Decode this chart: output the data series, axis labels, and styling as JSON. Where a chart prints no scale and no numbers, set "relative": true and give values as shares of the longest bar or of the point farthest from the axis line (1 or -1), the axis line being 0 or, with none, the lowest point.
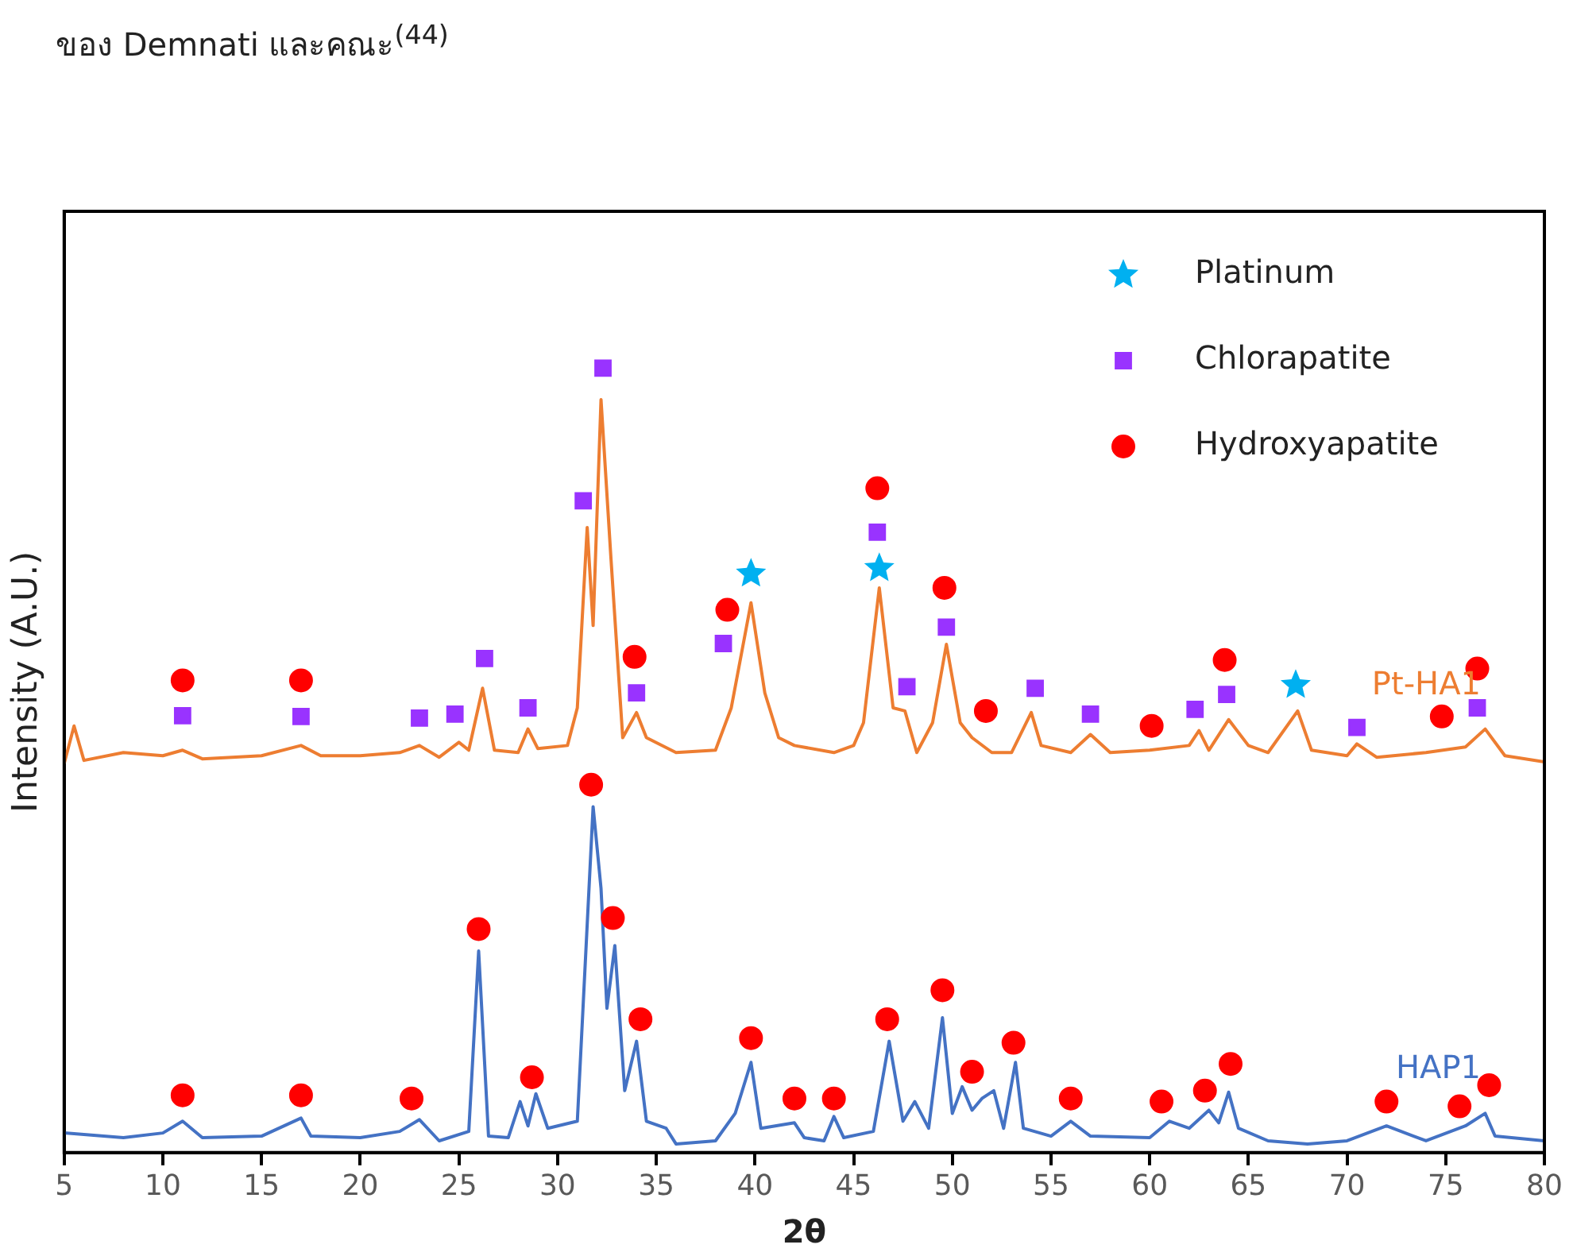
{
  "chart_data": {
    "type": "line",
    "xlabel": "2θ",
    "ylabel": "Intensity (A.U.)",
    "annotations": [
      "ของ Demnati และคณะ$^{(44)}$"
    ],
    "relative": true,
    "xlim": [
      5,
      80
    ],
    "xticks": [
      5,
      10,
      15,
      20,
      25,
      30,
      35,
      40,
      45,
      50,
      55,
      60,
      65,
      70,
      75,
      80
    ],
    "grid": false,
    "tick_labels": "x",
    "legend": "top right",
    "series": [
      {
        "name": "Pt-HA1",
        "type": "line",
        "color": "#ed7d31",
        "marker": "none",
        "x": [
          5,
          5.5,
          6,
          8,
          10,
          11,
          12,
          15,
          17,
          18,
          20,
          22,
          23,
          24,
          25,
          25.5,
          26.2,
          26.8,
          28,
          28.5,
          29,
          30.5,
          31,
          31.5,
          31.8,
          32.2,
          32.7,
          33.3,
          34,
          34.5,
          36,
          38,
          38.8,
          39.8,
          40.5,
          41.2,
          42,
          44,
          45,
          45.5,
          46.3,
          47,
          47.6,
          48.2,
          49,
          49.7,
          50.4,
          51,
          52,
          53,
          54,
          54.5,
          56,
          57,
          58,
          60,
          62,
          62.5,
          63,
          64,
          65,
          66,
          67.5,
          68.2,
          70,
          70.5,
          71.5,
          74,
          76,
          77,
          78,
          80
        ],
        "values": [
          0.496,
          0.544,
          0.5,
          0.51,
          0.506,
          0.513,
          0.502,
          0.506,
          0.519,
          0.506,
          0.506,
          0.51,
          0.519,
          0.504,
          0.523,
          0.513,
          0.592,
          0.513,
          0.51,
          0.54,
          0.515,
          0.519,
          0.567,
          0.797,
          0.672,
          0.96,
          0.759,
          0.529,
          0.561,
          0.529,
          0.51,
          0.513,
          0.567,
          0.701,
          0.586,
          0.529,
          0.519,
          0.51,
          0.519,
          0.548,
          0.72,
          0.567,
          0.563,
          0.51,
          0.548,
          0.648,
          0.548,
          0.529,
          0.51,
          0.51,
          0.561,
          0.519,
          0.51,
          0.533,
          0.51,
          0.513,
          0.519,
          0.538,
          0.513,
          0.552,
          0.519,
          0.51,
          0.563,
          0.513,
          0.506,
          0.521,
          0.504,
          0.51,
          0.517,
          0.54,
          0.506,
          0.498
        ]
      },
      {
        "name": "HAP1",
        "type": "line",
        "color": "#4472c4",
        "marker": "none",
        "x": [
          5,
          8,
          10,
          11,
          12,
          15,
          17,
          17.5,
          20,
          22,
          23,
          24,
          25.5,
          26,
          26.5,
          27.5,
          28.1,
          28.5,
          28.9,
          29.5,
          31,
          31.8,
          32.2,
          32.5,
          32.9,
          33.4,
          34,
          34.5,
          35.5,
          36,
          38,
          39,
          39.8,
          40.3,
          42,
          42.5,
          43.5,
          44,
          44.5,
          46,
          46.8,
          47.5,
          48.1,
          48.8,
          49.5,
          50,
          50.5,
          51,
          51.5,
          52.1,
          52.6,
          53.2,
          53.6,
          55,
          56,
          57,
          60,
          61,
          62,
          63,
          63.5,
          64,
          64.5,
          66,
          68,
          70,
          72,
          74,
          76,
          77,
          77.5,
          80
        ],
        "values": [
          0.025,
          0.019,
          0.025,
          0.04,
          0.019,
          0.021,
          0.044,
          0.021,
          0.019,
          0.027,
          0.042,
          0.015,
          0.027,
          0.257,
          0.021,
          0.019,
          0.065,
          0.034,
          0.075,
          0.031,
          0.04,
          0.441,
          0.337,
          0.184,
          0.264,
          0.079,
          0.142,
          0.04,
          0.031,
          0.011,
          0.015,
          0.05,
          0.115,
          0.031,
          0.038,
          0.019,
          0.015,
          0.046,
          0.019,
          0.027,
          0.142,
          0.04,
          0.065,
          0.031,
          0.172,
          0.05,
          0.084,
          0.054,
          0.069,
          0.079,
          0.031,
          0.115,
          0.031,
          0.021,
          0.04,
          0.021,
          0.019,
          0.04,
          0.031,
          0.054,
          0.038,
          0.077,
          0.031,
          0.015,
          0.011,
          0.015,
          0.034,
          0.015,
          0.034,
          0.05,
          0.021,
          0.015
        ]
      },
      {
        "name": "Platinum",
        "type": "scatter",
        "color": "#00b0f0",
        "marker": "star",
        "x": [
          39.8,
          46.3,
          67.4
        ],
        "values": [
          0.738,
          0.745,
          0.596
        ]
      },
      {
        "name": "Chlorapatite",
        "type": "scatter",
        "color": "#9933ff",
        "marker": "square",
        "x": [
          11,
          17,
          23,
          24.8,
          26.3,
          28.5,
          31.3,
          32.3,
          34,
          38.4,
          46.2,
          47.7,
          49.7,
          54.2,
          57,
          62.3,
          63.9,
          70.5,
          76.6
        ],
        "values": [
          0.557,
          0.556,
          0.554,
          0.559,
          0.63,
          0.567,
          0.831,
          1,
          0.586,
          0.649,
          0.791,
          0.594,
          0.67,
          0.592,
          0.559,
          0.565,
          0.584,
          0.542,
          0.567
        ]
      },
      {
        "name": "Hydroxyapatite",
        "type": "scatter",
        "color": "#ff0000",
        "marker": "circle",
        "x": [
          11,
          17,
          33.9,
          38.6,
          46.2,
          49.6,
          51.7,
          60.1,
          63.8,
          74.8,
          76.6,
          11,
          17,
          22.6,
          26,
          28.7,
          31.7,
          32.8,
          34.2,
          39.8,
          42,
          44,
          46.7,
          49.5,
          51,
          53.1,
          56,
          60.6,
          62.8,
          64.1,
          72,
          75.7,
          77.2
        ],
        "values": [
          0.602,
          0.602,
          0.632,
          0.692,
          0.847,
          0.72,
          0.563,
          0.544,
          0.628,
          0.556,
          0.617,
          0.073,
          0.073,
          0.069,
          0.285,
          0.096,
          0.469,
          0.299,
          0.17,
          0.146,
          0.069,
          0.069,
          0.17,
          0.207,
          0.103,
          0.14,
          0.069,
          0.065,
          0.079,
          0.113,
          0.065,
          0.059,
          0.086
        ]
      }
    ]
  }
}
